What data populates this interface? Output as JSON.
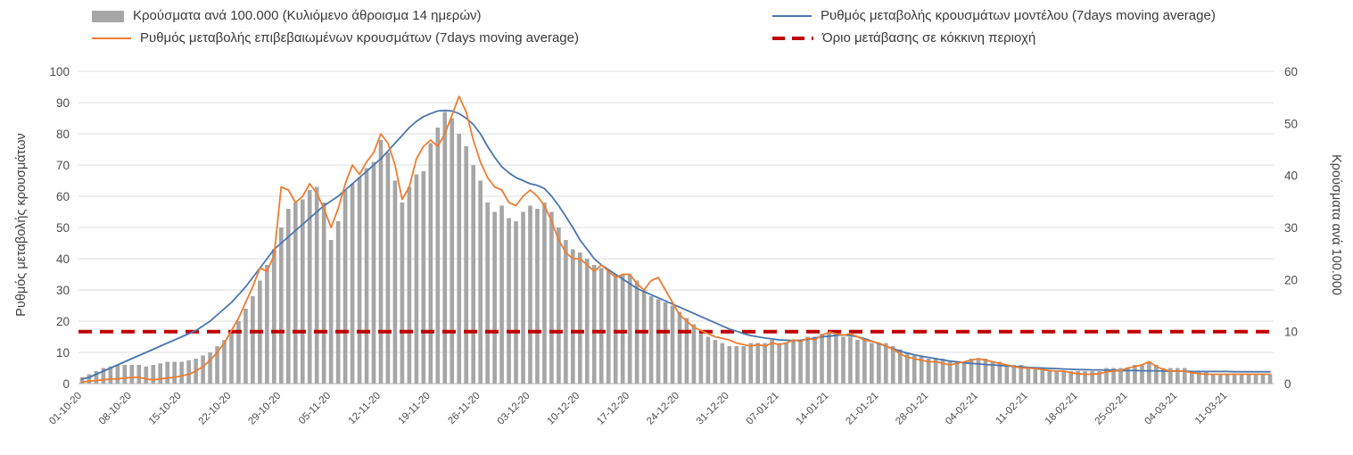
{
  "legend": {
    "items": [
      {
        "id": "cases_per_100k",
        "label": "Κρούσματα ανά 100.000 (Κυλιόμενο άθροισμα 14 ημερών)",
        "marker": "bar",
        "color": "#a6a6a6"
      },
      {
        "id": "model_rate",
        "label": "Ρυθμός μεταβολής κρουσμάτων μοντέλου (7days moving average)",
        "marker": "line",
        "color": "#4a75ad"
      },
      {
        "id": "confirmed_rate",
        "label": "Ρυθμός μεταβολής επιβεβαιωμένων κρουσμάτων (7days moving average)",
        "marker": "line",
        "color": "#ed7d31"
      },
      {
        "id": "red_zone_threshold",
        "label": "Όριο μετάβασης σε κόκκινη περιοχή",
        "marker": "dashed-line",
        "color": "#c00000"
      }
    ]
  },
  "chart_data": {
    "type": "bar",
    "subtype": "combo-bar-line",
    "grid": true,
    "legend_position": "top",
    "x_tick_interval_days": 7,
    "x_tick_labels": [
      "01-10-20",
      "08-10-20",
      "15-10-20",
      "22-10-20",
      "29-10-20",
      "05-11-20",
      "12-11-20",
      "19-11-20",
      "26-11-20",
      "03-12-20",
      "10-12-20",
      "17-12-20",
      "24-12-20",
      "31-12-20",
      "07-01-21",
      "14-01-21",
      "21-01-21",
      "28-01-21",
      "04-02-21",
      "11-02-21",
      "18-02-21",
      "25-02-21",
      "04-03-21",
      "11-03-21"
    ],
    "left_axis": {
      "label": "Ρυθμός μεταβολής κρουσμάτων",
      "min": 0,
      "max": 100,
      "tick_step": 10
    },
    "right_axis": {
      "label": "Κρούσματα ανά 100.000",
      "min": 0,
      "max": 60,
      "tick_step": 10
    },
    "threshold": {
      "name": "Όριο μετάβασης σε κόκκινη περιοχή",
      "axis": "right",
      "value": 10,
      "color": "#c00000",
      "style": "dashed"
    },
    "series": [
      {
        "id": "cases_per_100k",
        "name": "Κρούσματα ανά 100.000 (Κυλιόμενο άθροισμα 14 ημερών)",
        "type": "bar",
        "axis": "right",
        "color": "#a6a6a6",
        "values": [
          1.2,
          1.8,
          2.4,
          3,
          3.3,
          3.6,
          3.6,
          3.6,
          3.6,
          3.3,
          3.6,
          3.9,
          4.2,
          4.2,
          4.2,
          4.5,
          4.8,
          5.4,
          6,
          7.2,
          8.4,
          10.2,
          12,
          14.4,
          16.8,
          19.8,
          22.8,
          25.8,
          30,
          33.6,
          34.8,
          35.4,
          37.2,
          37.8,
          34.8,
          27.6,
          31.2,
          37.2,
          38.4,
          39.6,
          41.4,
          42.6,
          46.8,
          44.4,
          39,
          34.8,
          37.8,
          40.2,
          40.8,
          46.2,
          49.2,
          52.2,
          51,
          48,
          45.6,
          42,
          39,
          34.8,
          33,
          34.2,
          31.8,
          31.2,
          33,
          34.2,
          33.6,
          34.8,
          33,
          30,
          27.6,
          25.8,
          25.2,
          24,
          22.8,
          22.2,
          21.6,
          21,
          21,
          21,
          19.8,
          18,
          16.8,
          16.2,
          15.6,
          15,
          13.8,
          12.6,
          11.4,
          10.2,
          9,
          8.4,
          7.8,
          7.2,
          7.2,
          7.2,
          7.8,
          7.8,
          7.8,
          8.4,
          7.8,
          7.8,
          8.4,
          8.4,
          9,
          9,
          9.6,
          9.6,
          9.6,
          9,
          9,
          8.4,
          8.4,
          7.8,
          7.8,
          7.8,
          7.2,
          6.6,
          6,
          5.4,
          5.4,
          4.8,
          4.8,
          4.8,
          4.2,
          4.2,
          4.2,
          4.8,
          4.8,
          4.8,
          4.2,
          4.2,
          3.6,
          3.6,
          3.6,
          3,
          3,
          3,
          2.4,
          2.4,
          2.4,
          2.4,
          2.4,
          2.4,
          2.4,
          2.4,
          3,
          3,
          3,
          3,
          3.6,
          3.6,
          4.2,
          3.6,
          3,
          3,
          3,
          3,
          2.4,
          2.4,
          2.4,
          1.8,
          1.8,
          1.8,
          1.8,
          1.8,
          1.8,
          1.8,
          1.8,
          1.8
        ]
      },
      {
        "id": "model_rate",
        "name": "Ρυθμός μεταβολής κρουσμάτων μοντέλου (7days moving average)",
        "type": "line",
        "axis": "left",
        "color": "#4a75ad",
        "values": [
          1.5,
          2,
          3,
          4,
          5,
          6,
          7,
          8,
          9,
          10,
          11,
          12,
          13,
          14,
          15,
          16,
          17,
          18.5,
          20,
          22,
          24,
          26,
          28.5,
          31,
          34,
          37,
          40,
          43,
          45,
          47,
          49,
          51,
          53,
          55,
          57,
          58.5,
          60,
          62,
          64,
          66,
          68,
          70,
          72,
          74.5,
          77,
          79.5,
          82,
          84,
          85.5,
          86.5,
          87.3,
          87.5,
          87.3,
          86.5,
          85,
          83,
          80,
          76,
          72.5,
          69.5,
          67.5,
          66,
          65,
          64,
          63.5,
          62.5,
          60,
          57,
          53.5,
          50,
          46,
          43,
          40,
          38,
          36.5,
          35,
          33.5,
          32,
          30.5,
          29.5,
          28.5,
          27.5,
          26.5,
          25.5,
          24.5,
          23.5,
          22.5,
          21.5,
          20.5,
          19.5,
          18.5,
          17.5,
          16.8,
          16,
          15.4,
          15,
          14.6,
          14.3,
          14,
          13.9,
          13.8,
          13.9,
          14.2,
          14.6,
          15,
          15.2,
          15.5,
          15.6,
          15.4,
          15,
          14.4,
          13.6,
          12.8,
          12,
          11.2,
          10.4,
          9.8,
          9.2,
          8.8,
          8.4,
          8,
          7.6,
          7.2,
          7,
          6.7,
          6.5,
          6.3,
          6.1,
          6,
          5.8,
          5.7,
          5.5,
          5.4,
          5.2,
          5.1,
          5,
          4.9,
          4.8,
          4.7,
          4.6,
          4.5,
          4.5,
          4.4,
          4.4,
          4.3,
          4.3,
          4.2,
          4.2,
          4.2,
          4.1,
          4.1,
          4.1,
          4,
          4,
          4,
          4,
          3.9,
          3.9,
          3.9,
          3.9,
          3.9,
          3.9,
          3.8,
          3.8,
          3.8,
          3.8,
          3.8,
          3.8
        ]
      },
      {
        "id": "confirmed_rate",
        "name": "Ρυθμός μεταβολής επιβεβαιωμένων κρουσμάτων (7days moving average)",
        "type": "line",
        "axis": "left",
        "color": "#ed7d31",
        "values": [
          0.5,
          0.8,
          1,
          1.2,
          1.5,
          1.5,
          1.8,
          2,
          2,
          1.5,
          1.2,
          1.5,
          1.8,
          2,
          2.5,
          3,
          4,
          5.5,
          7.5,
          10,
          13,
          17,
          21,
          26,
          31,
          37,
          36,
          41,
          63,
          62,
          58,
          60,
          64,
          61,
          56,
          50,
          56,
          64,
          70,
          67,
          71,
          74,
          80,
          77,
          70,
          59,
          63,
          72,
          76,
          78,
          76,
          80,
          86,
          92,
          87,
          78,
          71,
          66,
          63,
          62,
          58,
          57,
          60,
          62,
          60,
          57,
          52,
          46,
          42,
          40,
          40,
          38,
          36,
          38,
          36,
          34,
          35,
          35,
          32,
          30,
          33,
          34,
          30,
          26,
          22,
          20,
          18,
          17,
          16,
          15,
          14.5,
          14,
          13,
          12.5,
          12,
          12.5,
          12,
          13,
          12.5,
          13,
          14,
          13.5,
          14.5,
          14,
          15.5,
          16.5,
          16,
          15.5,
          16,
          15,
          14,
          13.5,
          13,
          12,
          11,
          9.5,
          8.5,
          8,
          7.5,
          7,
          7,
          6.5,
          6,
          6.5,
          7,
          7.5,
          8,
          7.5,
          7,
          6.5,
          6,
          5.5,
          5,
          5,
          4.8,
          4.5,
          4.2,
          4,
          4,
          3.5,
          3.2,
          3,
          3,
          3.2,
          3.8,
          4,
          4.2,
          5,
          5.5,
          6,
          7,
          5.5,
          4.5,
          4,
          4,
          4,
          3.5,
          3.2,
          3,
          3,
          3,
          3,
          3,
          3,
          3,
          3,
          3,
          3
        ]
      }
    ]
  }
}
